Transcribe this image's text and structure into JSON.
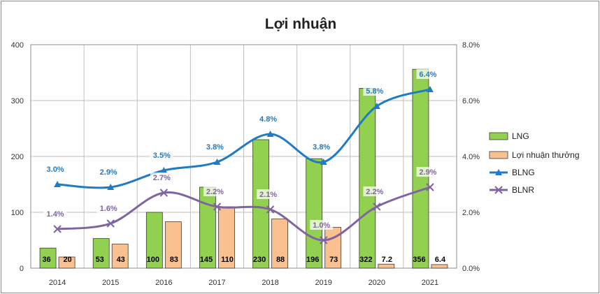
{
  "chart_data": {
    "type": "bar",
    "title": "Lợi nhuận",
    "categories": [
      "2014",
      "2015",
      "2016",
      "2017",
      "2018",
      "2019",
      "2020",
      "2021"
    ],
    "y_left": {
      "ylim": [
        0,
        400
      ],
      "ticks": [
        "0",
        "100",
        "200",
        "300",
        "400"
      ]
    },
    "y_right": {
      "ylim": [
        0,
        8
      ],
      "ticks": [
        "0.0%",
        "2.0%",
        "4.0%",
        "6.0%",
        "8.0%"
      ]
    },
    "series": [
      {
        "name": "LNG",
        "type": "bar",
        "axis": "left",
        "color": "#92D050",
        "values": [
          36,
          53,
          100,
          145,
          230,
          196,
          322,
          356
        ],
        "labels": [
          "36",
          "53",
          "100",
          "145",
          "230",
          "196",
          "322",
          "356"
        ]
      },
      {
        "name": "Lợi nhuận thưởng",
        "type": "bar",
        "axis": "left",
        "color": "#FAC090",
        "values": [
          20,
          43,
          83,
          110,
          88,
          73,
          7.2,
          6.4
        ],
        "labels": [
          "20",
          "43",
          "83",
          "110",
          "88",
          "73",
          "7.2",
          "6.4"
        ]
      },
      {
        "name": "BLNG",
        "type": "line",
        "axis": "right",
        "color": "#1F7BC4",
        "marker": "triangle",
        "values": [
          3.0,
          2.9,
          3.5,
          3.8,
          4.8,
          3.8,
          5.8,
          6.4
        ],
        "labels": [
          "3.0%",
          "2.9%",
          "3.5%",
          "3.8%",
          "4.8%",
          "3.8%",
          "5.8%",
          "6.4%"
        ]
      },
      {
        "name": "BLNR",
        "type": "line",
        "axis": "right",
        "color": "#8064A2",
        "marker": "x",
        "values": [
          1.4,
          1.6,
          2.7,
          2.2,
          2.1,
          1.0,
          2.2,
          2.9
        ],
        "labels": [
          "1.4%",
          "1.6%",
          "2.7%",
          "2.2%",
          "2.1%",
          "1.0%",
          "2.2%",
          "2.9%"
        ]
      }
    ],
    "legend_position": "right"
  }
}
